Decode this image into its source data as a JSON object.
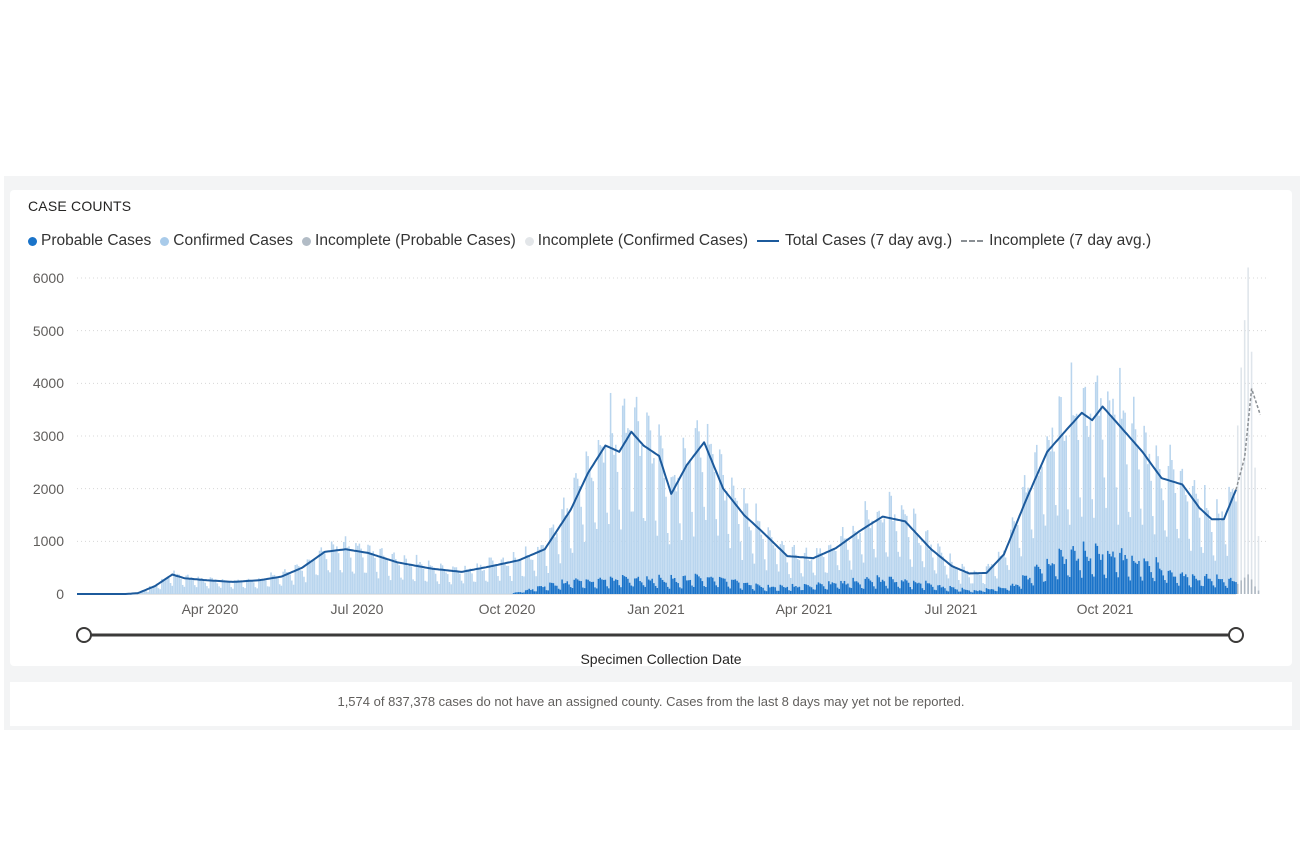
{
  "chart_data": {
    "type": "bar",
    "title": "CASE COUNTS",
    "xlabel": "Specimen Collection Date",
    "ylabel": "",
    "ylim": [
      0,
      6000
    ],
    "yticks": [
      0,
      1000,
      2000,
      3000,
      4000,
      5000,
      6000
    ],
    "yticks_labels": [
      "0",
      "1000",
      "2000",
      "3000",
      "4000",
      "5000",
      "6000"
    ],
    "xticks": [
      "Apr 2020",
      "Jul 2020",
      "Oct 2020",
      "Jan 2021",
      "Apr 2021",
      "Jul 2021",
      "Oct 2021"
    ],
    "grid": true,
    "legend_position": "top-left",
    "legend": [
      {
        "name": "Probable Cases",
        "color": "#1a73c9",
        "kind": "dot"
      },
      {
        "name": "Confirmed Cases",
        "color": "#a9cbea",
        "kind": "dot"
      },
      {
        "name": "Incomplete (Probable Cases)",
        "color": "#b2bcc6",
        "kind": "dot"
      },
      {
        "name": "Incomplete (Confirmed Cases)",
        "color": "#e3e6e9",
        "kind": "dot"
      },
      {
        "name": "Total Cases (7 day avg.)",
        "color": "#1c5a9c",
        "kind": "line"
      },
      {
        "name": "Incomplete (7 day avg.)",
        "color": "#8a8f94",
        "kind": "dashed"
      }
    ],
    "x_day_offset_start": 0,
    "x_day_offset_end": 669,
    "tick_day_offsets": [
      55,
      146,
      238,
      330,
      420,
      511,
      603
    ],
    "series": [
      {
        "name": "Total Cases (7 day avg.)",
        "points": [
          [
            0,
            0
          ],
          [
            28,
            0
          ],
          [
            35,
            15
          ],
          [
            45,
            150
          ],
          [
            55,
            370
          ],
          [
            62,
            300
          ],
          [
            75,
            260
          ],
          [
            90,
            230
          ],
          [
            105,
            260
          ],
          [
            118,
            330
          ],
          [
            130,
            500
          ],
          [
            143,
            800
          ],
          [
            155,
            850
          ],
          [
            168,
            780
          ],
          [
            185,
            600
          ],
          [
            205,
            480
          ],
          [
            222,
            420
          ],
          [
            238,
            520
          ],
          [
            255,
            640
          ],
          [
            270,
            850
          ],
          [
            285,
            1600
          ],
          [
            295,
            2300
          ],
          [
            305,
            2820
          ],
          [
            313,
            2700
          ],
          [
            320,
            3080
          ],
          [
            327,
            2820
          ],
          [
            336,
            2620
          ],
          [
            343,
            1900
          ],
          [
            352,
            2450
          ],
          [
            362,
            2880
          ],
          [
            373,
            2000
          ],
          [
            385,
            1500
          ],
          [
            395,
            1200
          ],
          [
            410,
            720
          ],
          [
            425,
            680
          ],
          [
            438,
            870
          ],
          [
            452,
            1200
          ],
          [
            465,
            1470
          ],
          [
            478,
            1380
          ],
          [
            493,
            850
          ],
          [
            505,
            530
          ],
          [
            515,
            390
          ],
          [
            525,
            400
          ],
          [
            535,
            750
          ],
          [
            548,
            1800
          ],
          [
            560,
            2700
          ],
          [
            572,
            3150
          ],
          [
            580,
            3440
          ],
          [
            586,
            3300
          ],
          [
            592,
            3560
          ],
          [
            603,
            3150
          ],
          [
            615,
            2700
          ],
          [
            626,
            2200
          ],
          [
            638,
            2080
          ],
          [
            648,
            1630
          ],
          [
            655,
            1420
          ],
          [
            662,
            1420
          ],
          [
            669,
            1980
          ]
        ]
      },
      {
        "name": "Incomplete (7 day avg.)",
        "points": [
          [
            669,
            1980
          ],
          [
            674,
            2600
          ],
          [
            678,
            3900
          ],
          [
            683,
            3400
          ]
        ]
      },
      {
        "name": "Probable Cases",
        "points": [
          [
            0,
            0
          ],
          [
            250,
            0
          ],
          [
            270,
            150
          ],
          [
            290,
            250
          ],
          [
            320,
            280
          ],
          [
            345,
            260
          ],
          [
            370,
            300
          ],
          [
            385,
            200
          ],
          [
            400,
            120
          ],
          [
            420,
            150
          ],
          [
            440,
            200
          ],
          [
            460,
            260
          ],
          [
            480,
            240
          ],
          [
            500,
            130
          ],
          [
            520,
            60
          ],
          [
            540,
            150
          ],
          [
            555,
            450
          ],
          [
            565,
            600
          ],
          [
            575,
            720
          ],
          [
            590,
            760
          ],
          [
            603,
            700
          ],
          [
            615,
            600
          ],
          [
            630,
            420
          ],
          [
            645,
            300
          ],
          [
            669,
            260
          ]
        ]
      }
    ],
    "annotations": [
      "Incomplete bars at far right reach about 6200"
    ]
  },
  "footer": {
    "note": "1,574 of 837,378 cases do not have an assigned county. Cases from the last 8 days may yet not be reported."
  },
  "colors": {
    "confirmed_bar": "#b9d5ee",
    "probable_bar": "#1a73c9",
    "incomplete_confirmed": "#dfe5eb",
    "incomplete_probable": "#aeb8c2",
    "avg_line": "#1c5a9c",
    "grid": "#d8d8d8"
  }
}
